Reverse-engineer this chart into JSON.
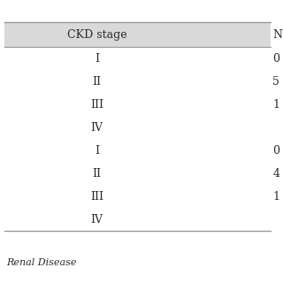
{
  "col1_header": "CKD stage",
  "col2_header": "N",
  "rows": [
    [
      "I",
      "0"
    ],
    [
      "II",
      "5"
    ],
    [
      "III",
      "1"
    ],
    [
      "IV",
      ""
    ],
    [
      "I",
      "0"
    ],
    [
      "II",
      "4"
    ],
    [
      "III",
      "1"
    ],
    [
      "IV",
      ""
    ]
  ],
  "footer_note": "Renal Disease",
  "header_bg": "#d9d9d9",
  "table_bg": "#ffffff",
  "text_color": "#2b2b2b",
  "line_color": "#999999",
  "font_size": 9,
  "header_font_size": 9
}
